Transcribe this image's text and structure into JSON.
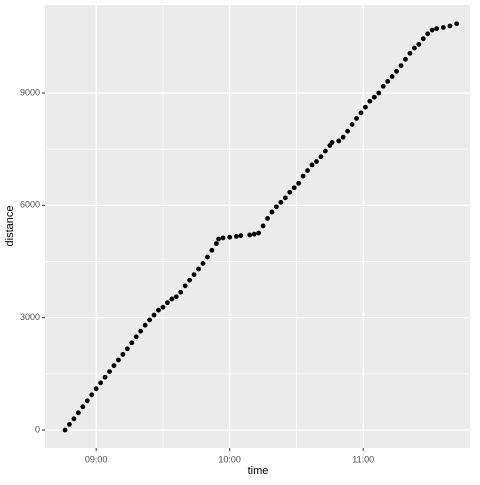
{
  "chart_data": {
    "type": "scatter",
    "x_label": "time",
    "y_label": "distance",
    "color": "#000000",
    "x": [
      "08:46",
      "08:48",
      "08:50",
      "08:52",
      "08:54",
      "08:56",
      "08:58",
      "09:00",
      "09:02",
      "09:04",
      "09:06",
      "09:08",
      "09:10",
      "09:12",
      "09:14",
      "09:16",
      "09:18",
      "09:20",
      "09:22",
      "09:24",
      "09:26",
      "09:28",
      "09:30",
      "09:32",
      "09:34",
      "09:36",
      "09:38",
      "09:40",
      "09:42",
      "09:44",
      "09:46",
      "09:48",
      "09:50",
      "09:52",
      "09:54",
      "09:55",
      "09:57",
      "10:00",
      "10:03",
      "10:05",
      "10:09",
      "10:11",
      "10:13",
      "10:15",
      "10:17",
      "10:19",
      "10:21",
      "10:23",
      "10:25",
      "10:27",
      "10:29",
      "10:31",
      "10:33",
      "10:35",
      "10:37",
      "10:39",
      "10:41",
      "10:43",
      "10:45",
      "10:46",
      "10:49",
      "10:51",
      "10:53",
      "10:55",
      "10:57",
      "10:59",
      "11:01",
      "11:03",
      "11:05",
      "11:07",
      "11:09",
      "11:11",
      "11:13",
      "11:15",
      "11:17",
      "11:19",
      "11:21",
      "11:23",
      "11:25",
      "11:27",
      "11:29",
      "11:31",
      "11:33",
      "11:36",
      "11:39",
      "11:42"
    ],
    "values": [
      0,
      150,
      300,
      460,
      620,
      780,
      940,
      1100,
      1260,
      1410,
      1560,
      1720,
      1870,
      2020,
      2170,
      2330,
      2490,
      2640,
      2800,
      2940,
      3070,
      3200,
      3280,
      3400,
      3500,
      3560,
      3680,
      3850,
      4000,
      4150,
      4300,
      4450,
      4620,
      4800,
      4980,
      5100,
      5130,
      5150,
      5170,
      5190,
      5210,
      5230,
      5260,
      5450,
      5650,
      5820,
      5960,
      6080,
      6200,
      6350,
      6470,
      6590,
      6780,
      6930,
      7080,
      7170,
      7300,
      7450,
      7600,
      7680,
      7720,
      7820,
      7980,
      8160,
      8320,
      8470,
      8620,
      8780,
      8890,
      9000,
      9180,
      9310,
      9440,
      9580,
      9730,
      9900,
      10060,
      10200,
      10300,
      10450,
      10580,
      10680,
      10720,
      10750,
      10790,
      10850
    ],
    "xlim": [
      "08:37",
      "11:48"
    ],
    "xticks": [
      "09:00",
      "10:00",
      "11:00"
    ],
    "ylim": [
      -480,
      11350
    ],
    "yticks": [
      0,
      3000,
      6000,
      9000
    ],
    "grid": true
  }
}
